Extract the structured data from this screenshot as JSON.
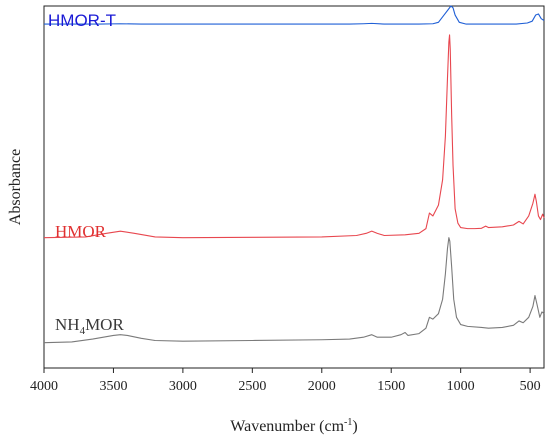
{
  "chart_data": {
    "type": "line",
    "title": "",
    "xlabel_main": "Wavenumber (cm",
    "xlabel_sup": "-1",
    "xlabel_close": ")",
    "ylabel": "Absorbance",
    "xlim": [
      4000,
      400
    ],
    "x_reversed": true,
    "x_ticks": [
      4000,
      3500,
      3000,
      2500,
      2000,
      1500,
      1000,
      500
    ],
    "y_ticks_shown": false,
    "grid": false,
    "series": [
      {
        "name": "HMOR-T",
        "label_style": "sans",
        "color": "#1f5fd6",
        "label_color": "#1a1ad6",
        "points": [
          [
            4000,
            0.95
          ],
          [
            3600,
            0.95
          ],
          [
            3450,
            0.951
          ],
          [
            3300,
            0.95
          ],
          [
            2000,
            0.95
          ],
          [
            1800,
            0.95
          ],
          [
            1700,
            0.951
          ],
          [
            1640,
            0.952
          ],
          [
            1550,
            0.95
          ],
          [
            1300,
            0.95
          ],
          [
            1200,
            0.951
          ],
          [
            1160,
            0.955
          ],
          [
            1120,
            0.975
          ],
          [
            1090,
            0.99
          ],
          [
            1070,
            1.0
          ],
          [
            1055,
            0.995
          ],
          [
            1040,
            0.975
          ],
          [
            1010,
            0.955
          ],
          [
            960,
            0.95
          ],
          [
            800,
            0.95
          ],
          [
            700,
            0.95
          ],
          [
            600,
            0.95
          ],
          [
            520,
            0.953
          ],
          [
            485,
            0.958
          ],
          [
            460,
            0.975
          ],
          [
            440,
            0.978
          ],
          [
            420,
            0.965
          ],
          [
            400,
            0.96
          ]
        ]
      },
      {
        "name": "HMOR",
        "label_style": "serif",
        "color": "#e8474f",
        "label_color": "#e03030",
        "points": [
          [
            4000,
            0.36
          ],
          [
            3700,
            0.362
          ],
          [
            3550,
            0.372
          ],
          [
            3450,
            0.378
          ],
          [
            3350,
            0.372
          ],
          [
            3200,
            0.362
          ],
          [
            3000,
            0.36
          ],
          [
            2500,
            0.361
          ],
          [
            2000,
            0.362
          ],
          [
            1750,
            0.366
          ],
          [
            1680,
            0.372
          ],
          [
            1640,
            0.378
          ],
          [
            1600,
            0.372
          ],
          [
            1550,
            0.366
          ],
          [
            1400,
            0.368
          ],
          [
            1300,
            0.372
          ],
          [
            1250,
            0.385
          ],
          [
            1225,
            0.428
          ],
          [
            1200,
            0.42
          ],
          [
            1160,
            0.45
          ],
          [
            1130,
            0.52
          ],
          [
            1110,
            0.64
          ],
          [
            1095,
            0.8
          ],
          [
            1085,
            0.9
          ],
          [
            1080,
            0.92
          ],
          [
            1075,
            0.88
          ],
          [
            1065,
            0.7
          ],
          [
            1055,
            0.56
          ],
          [
            1040,
            0.44
          ],
          [
            1020,
            0.4
          ],
          [
            1000,
            0.388
          ],
          [
            950,
            0.385
          ],
          [
            900,
            0.385
          ],
          [
            850,
            0.386
          ],
          [
            820,
            0.392
          ],
          [
            800,
            0.388
          ],
          [
            700,
            0.39
          ],
          [
            620,
            0.395
          ],
          [
            580,
            0.405
          ],
          [
            550,
            0.398
          ],
          [
            510,
            0.42
          ],
          [
            480,
            0.455
          ],
          [
            465,
            0.48
          ],
          [
            455,
            0.46
          ],
          [
            440,
            0.42
          ],
          [
            425,
            0.41
          ],
          [
            410,
            0.425
          ],
          [
            400,
            0.415
          ]
        ]
      },
      {
        "name": "NH4MOR",
        "label_main": "NH",
        "label_sub": "4",
        "label_tail": "MOR",
        "label_style": "serif",
        "color": "#7a7a7a",
        "label_color": "#3a3a3a",
        "points": [
          [
            4000,
            0.07
          ],
          [
            3800,
            0.072
          ],
          [
            3650,
            0.08
          ],
          [
            3500,
            0.09
          ],
          [
            3450,
            0.092
          ],
          [
            3400,
            0.09
          ],
          [
            3300,
            0.082
          ],
          [
            3200,
            0.076
          ],
          [
            3000,
            0.074
          ],
          [
            2500,
            0.076
          ],
          [
            2000,
            0.078
          ],
          [
            1800,
            0.08
          ],
          [
            1700,
            0.085
          ],
          [
            1640,
            0.092
          ],
          [
            1600,
            0.085
          ],
          [
            1500,
            0.085
          ],
          [
            1430,
            0.092
          ],
          [
            1400,
            0.098
          ],
          [
            1380,
            0.09
          ],
          [
            1300,
            0.095
          ],
          [
            1250,
            0.11
          ],
          [
            1225,
            0.14
          ],
          [
            1200,
            0.135
          ],
          [
            1160,
            0.15
          ],
          [
            1130,
            0.19
          ],
          [
            1110,
            0.26
          ],
          [
            1095,
            0.33
          ],
          [
            1085,
            0.36
          ],
          [
            1078,
            0.35
          ],
          [
            1065,
            0.28
          ],
          [
            1050,
            0.19
          ],
          [
            1030,
            0.14
          ],
          [
            1000,
            0.12
          ],
          [
            950,
            0.115
          ],
          [
            850,
            0.112
          ],
          [
            800,
            0.11
          ],
          [
            700,
            0.112
          ],
          [
            620,
            0.118
          ],
          [
            580,
            0.13
          ],
          [
            550,
            0.125
          ],
          [
            510,
            0.14
          ],
          [
            480,
            0.17
          ],
          [
            465,
            0.2
          ],
          [
            450,
            0.175
          ],
          [
            430,
            0.14
          ],
          [
            415,
            0.155
          ],
          [
            400,
            0.15
          ]
        ]
      }
    ]
  }
}
